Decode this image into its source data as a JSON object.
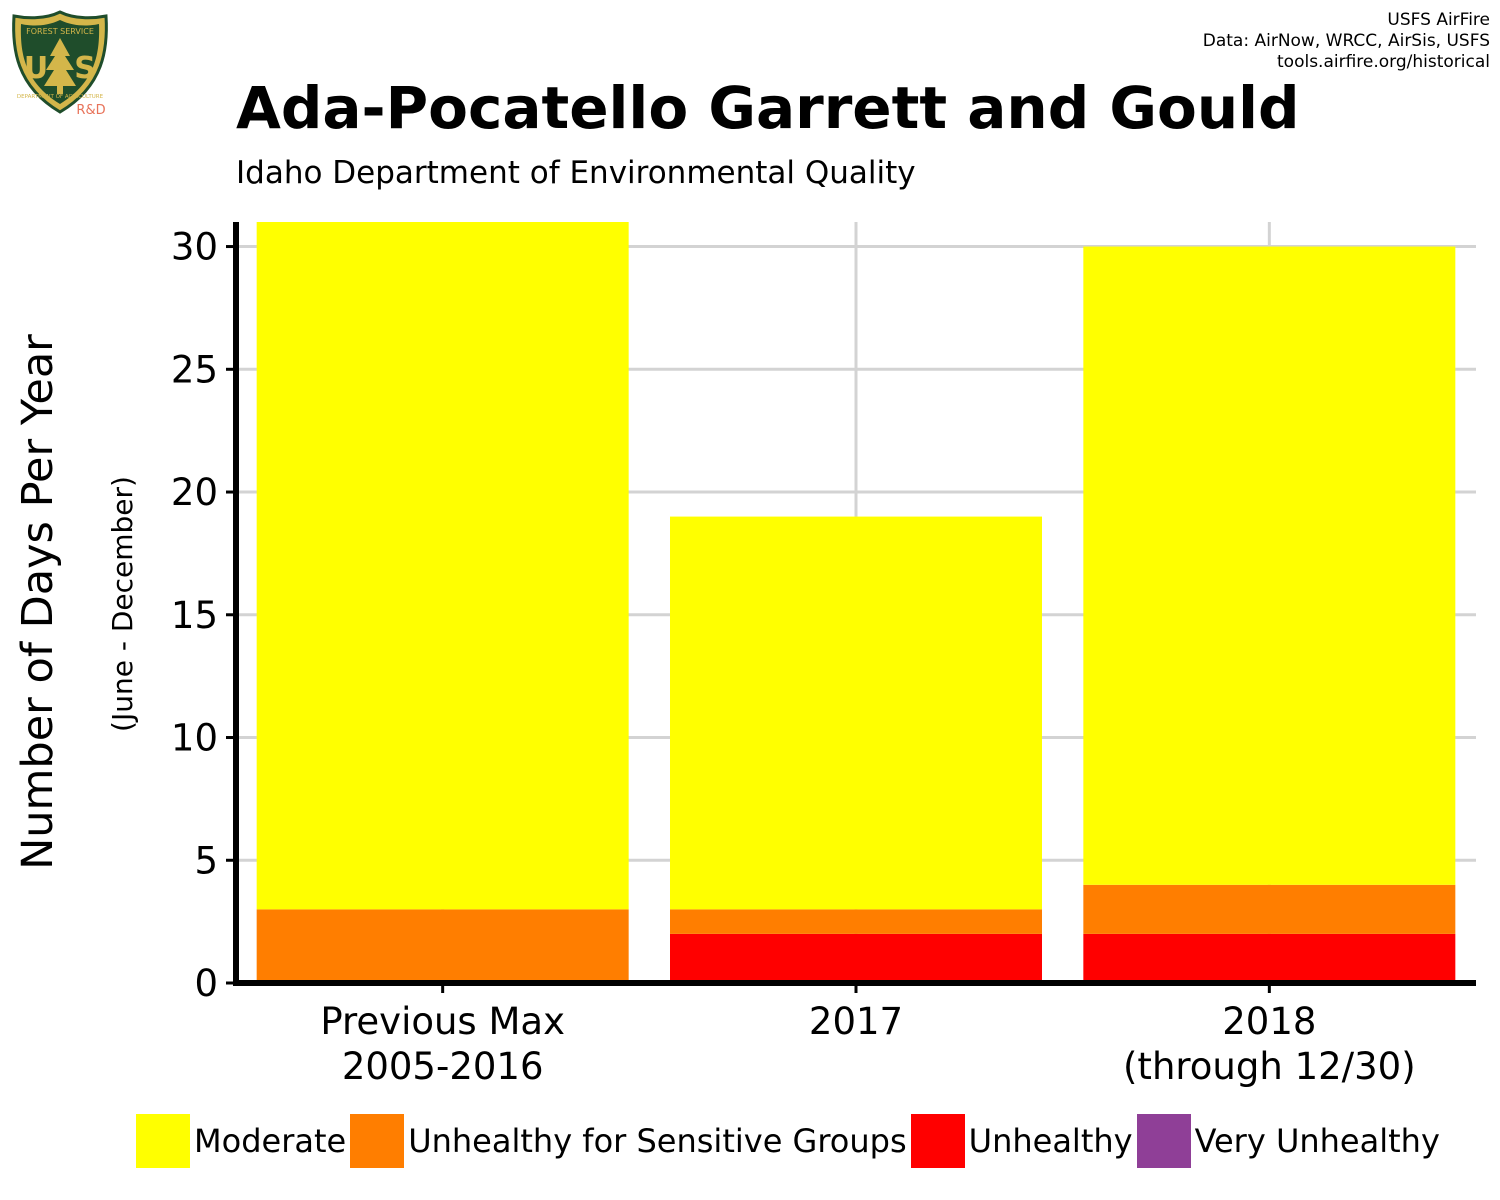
{
  "header": {
    "title": "Ada-Pocatello Garrett and Gould",
    "subtitle": "Idaho Department of Environmental Quality",
    "credits": [
      "USFS AirFire",
      "Data: AirNow, WRCC, AirSis, USFS",
      "tools.airfire.org/historical"
    ]
  },
  "logo": {
    "text_top": "FOREST SERVICE",
    "text_mid": "US",
    "text_bottom": "DEPARTMENT OF AGRICULTURE",
    "tag": "R&D",
    "colors": {
      "green": "#1f4d2b",
      "gold": "#d4b64a",
      "tag": "#e8735a"
    }
  },
  "chart_data": {
    "type": "bar",
    "stacked": true,
    "categories": [
      [
        "Previous Max",
        "2005-2016"
      ],
      [
        "2017"
      ],
      [
        "2018",
        "(through 12/30)"
      ]
    ],
    "series": [
      {
        "name": "Moderate",
        "color": "#ffff00",
        "values": [
          28,
          16,
          26
        ]
      },
      {
        "name": "Unhealthy for Sensitive Groups",
        "color": "#ff7e00",
        "values": [
          3,
          1,
          2
        ]
      },
      {
        "name": "Unhealthy",
        "color": "#ff0000",
        "values": [
          0,
          2,
          2
        ]
      },
      {
        "name": "Very Unhealthy",
        "color": "#8f3f97",
        "values": [
          0,
          0,
          0
        ]
      }
    ],
    "stack_order": [
      "Unhealthy",
      "Unhealthy for Sensitive Groups",
      "Moderate"
    ],
    "ylabel": "Number of Days Per Year",
    "ylabel_sub": "(June - December)",
    "ylim": [
      0,
      31
    ],
    "yticks": [
      0,
      5,
      10,
      15,
      20,
      25,
      30
    ],
    "grid": true,
    "legend_position": "bottom"
  }
}
